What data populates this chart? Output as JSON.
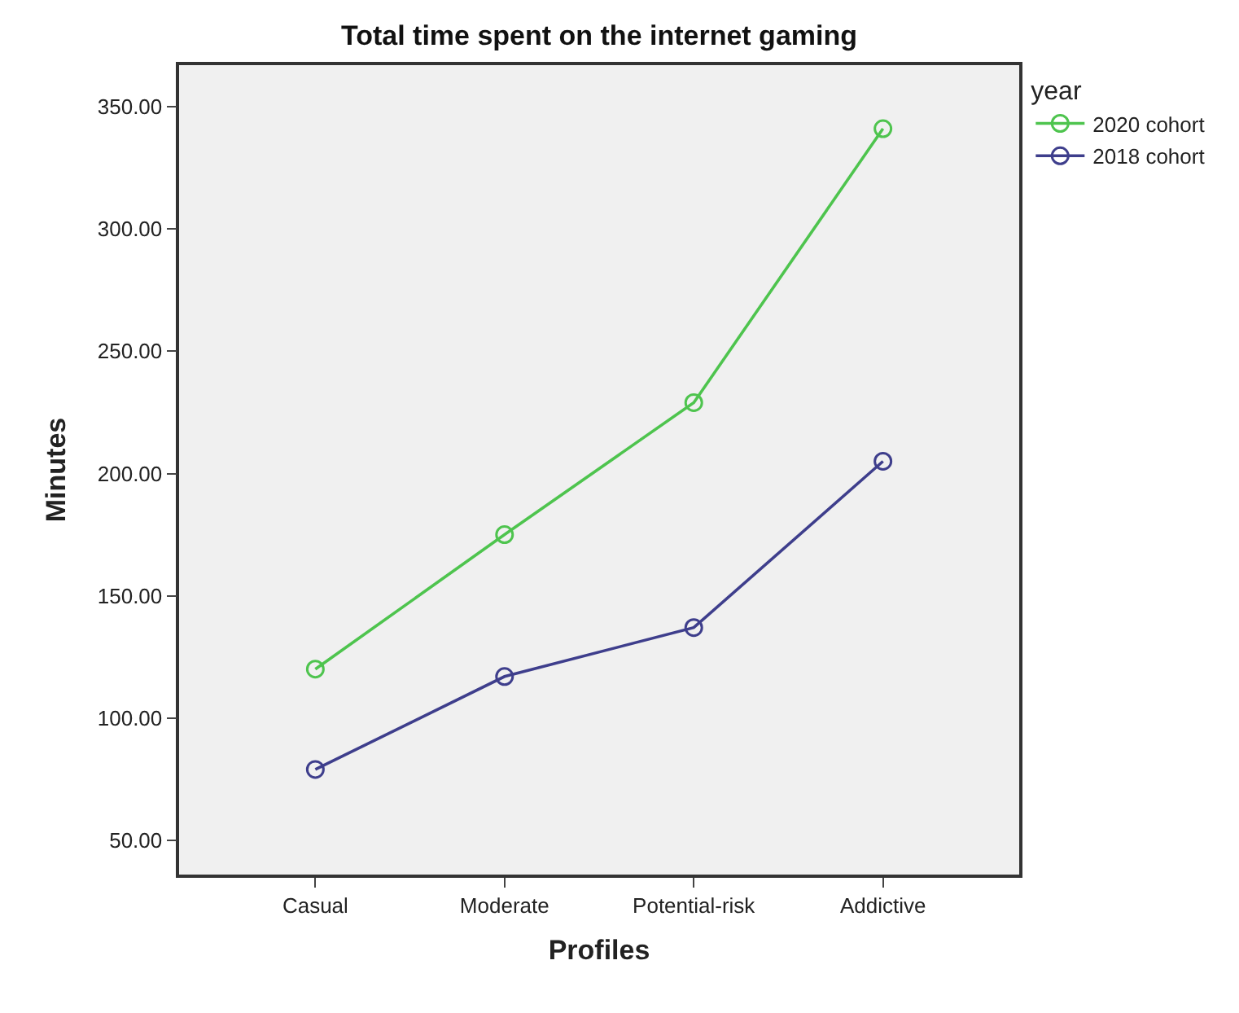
{
  "chart_data": {
    "type": "line",
    "title": "Total time spent on the internet gaming",
    "xlabel": "Profiles",
    "ylabel": "Minutes",
    "legend_title": "year",
    "categories": [
      "Casual",
      "Moderate",
      "Potential-risk",
      "Addictive"
    ],
    "series": [
      {
        "name": "2020 cohort",
        "color": "#4ec44e",
        "values": [
          120,
          175,
          229,
          341
        ]
      },
      {
        "name": "2018 cohort",
        "color": "#3e3e8c",
        "values": [
          79,
          117,
          137,
          205
        ]
      }
    ],
    "ylim": [
      36,
      367
    ],
    "yticks": [
      {
        "value": 50,
        "label": "50.00"
      },
      {
        "value": 100,
        "label": "100.00"
      },
      {
        "value": 150,
        "label": "150.00"
      },
      {
        "value": 200,
        "label": "200.00"
      },
      {
        "value": 250,
        "label": "250.00"
      },
      {
        "value": 300,
        "label": "300.00"
      },
      {
        "value": 350,
        "label": "350.00"
      }
    ],
    "grid": false,
    "legend": "top right",
    "marker": "circle",
    "line_style": "solid"
  }
}
